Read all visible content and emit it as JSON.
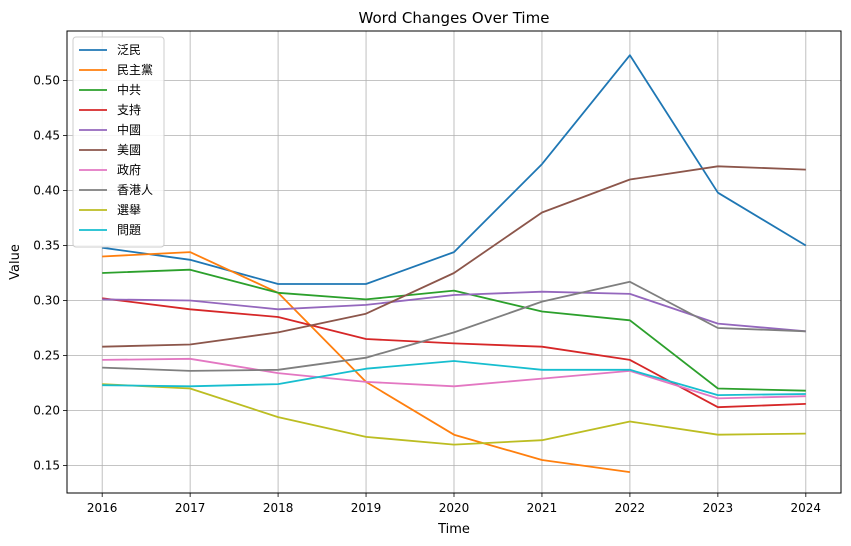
{
  "chart_data": {
    "type": "line",
    "title": "Word Changes Over Time",
    "xlabel": "Time",
    "ylabel": "Value",
    "x": [
      2016,
      2017,
      2018,
      2019,
      2020,
      2021,
      2022,
      2023,
      2024
    ],
    "xticks": [
      "2016",
      "2017",
      "2018",
      "2019",
      "2020",
      "2021",
      "2022",
      "2023",
      "2024"
    ],
    "yticks": [
      "0.15",
      "0.20",
      "0.25",
      "0.30",
      "0.35",
      "0.40",
      "0.45",
      "0.50"
    ],
    "ylim": [
      0.125,
      0.545
    ],
    "xlim": [
      2015.6,
      2024.4
    ],
    "grid": true,
    "legend_position": "upper-left",
    "series": [
      {
        "name": "泛民",
        "color": "#1f77b4",
        "values": [
          0.348,
          0.337,
          0.315,
          0.315,
          0.344,
          0.424,
          0.523,
          0.398,
          0.35
        ]
      },
      {
        "name": "民主黨",
        "color": "#ff7f0e",
        "values": [
          0.34,
          0.344,
          0.307,
          0.226,
          0.178,
          0.155,
          0.144,
          null,
          null
        ]
      },
      {
        "name": "中共",
        "color": "#2ca02c",
        "values": [
          0.325,
          0.328,
          0.307,
          0.301,
          0.309,
          0.29,
          0.282,
          0.22,
          0.218
        ]
      },
      {
        "name": "支持",
        "color": "#d62728",
        "values": [
          0.302,
          0.292,
          0.285,
          0.265,
          0.261,
          0.258,
          0.246,
          0.203,
          0.206
        ]
      },
      {
        "name": "中國",
        "color": "#9467bd",
        "values": [
          0.301,
          0.3,
          0.292,
          0.296,
          0.305,
          0.308,
          0.306,
          0.279,
          0.272
        ]
      },
      {
        "name": "美國",
        "color": "#8c564b",
        "values": [
          0.258,
          0.26,
          0.271,
          0.288,
          0.325,
          0.38,
          0.41,
          0.422,
          0.419
        ]
      },
      {
        "name": "政府",
        "color": "#e377c2",
        "values": [
          0.246,
          0.247,
          0.234,
          0.226,
          0.222,
          0.229,
          0.236,
          0.211,
          0.213
        ]
      },
      {
        "name": "香港人",
        "color": "#7f7f7f",
        "values": [
          0.239,
          0.236,
          0.237,
          0.248,
          0.271,
          0.299,
          0.317,
          0.275,
          0.272
        ]
      },
      {
        "name": "選舉",
        "color": "#bcbd22",
        "values": [
          0.224,
          0.22,
          0.194,
          0.176,
          0.169,
          0.173,
          0.19,
          0.178,
          0.179
        ]
      },
      {
        "name": "問題",
        "color": "#17becf",
        "values": [
          0.223,
          0.222,
          0.224,
          0.238,
          0.245,
          0.237,
          0.237,
          0.214,
          0.215
        ]
      }
    ]
  }
}
